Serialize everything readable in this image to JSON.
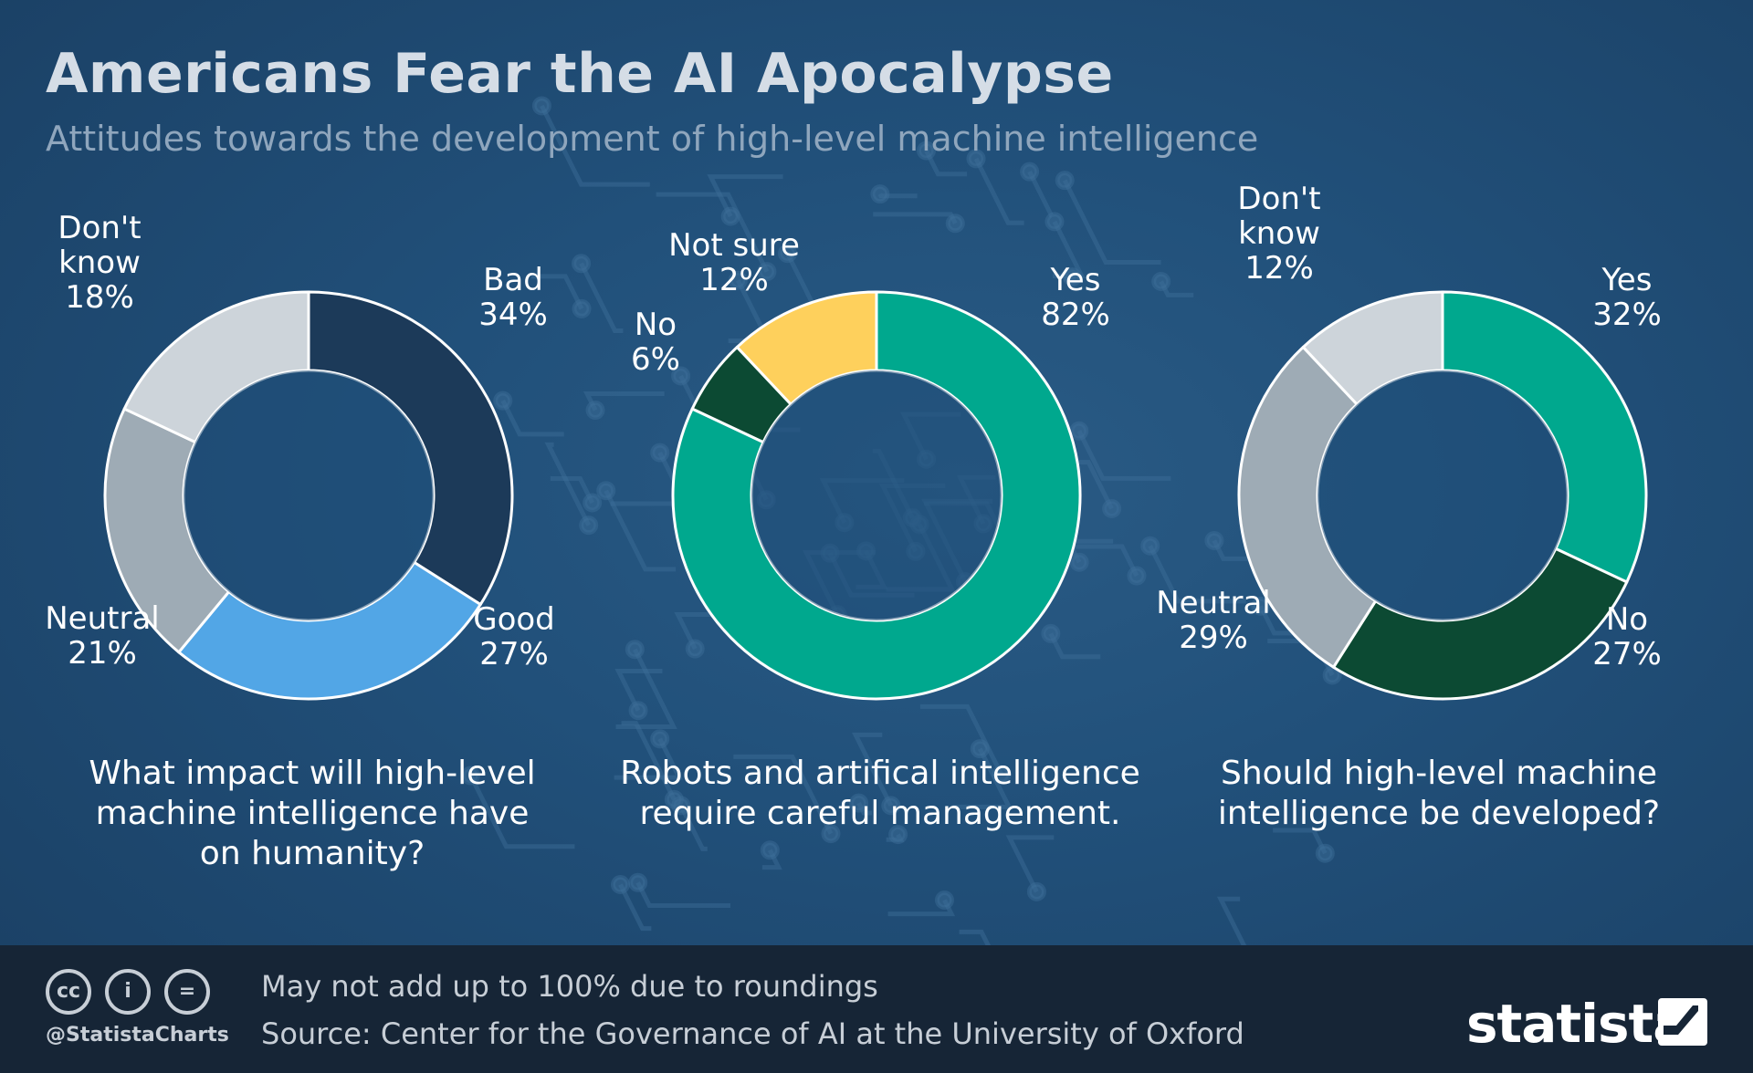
{
  "title": "Americans Fear the AI Apocalypse",
  "subtitle": "Attitudes towards the development of high-level machine intelligence",
  "chart_data": [
    {
      "type": "pie",
      "variant": "donut",
      "question": [
        "What impact will high-level",
        "machine intelligence have",
        "on humanity?"
      ],
      "slices": [
        {
          "label": [
            "Bad"
          ],
          "value": 34,
          "display": "34%",
          "color": "#1c3a59"
        },
        {
          "label": [
            "Good"
          ],
          "value": 27,
          "display": "27%",
          "color": "#52a6e6"
        },
        {
          "label": [
            "Neutral"
          ],
          "value": 21,
          "display": "21%",
          "color": "#9eabb5"
        },
        {
          "label": [
            "Don't",
            "know"
          ],
          "value": 18,
          "display": "18%",
          "color": "#cdd4da"
        }
      ]
    },
    {
      "type": "pie",
      "variant": "donut",
      "question": [
        "Robots and artifical intelligence",
        "require careful management."
      ],
      "slices": [
        {
          "label": [
            "Yes"
          ],
          "value": 82,
          "display": "82%",
          "color": "#00a88e"
        },
        {
          "label": [
            "No"
          ],
          "value": 6,
          "display": "6%",
          "color": "#0c4a33"
        },
        {
          "label": [
            "Not sure"
          ],
          "value": 12,
          "display": "12%",
          "color": "#fed05c"
        }
      ]
    },
    {
      "type": "pie",
      "variant": "donut",
      "question": [
        "Should high-level machine",
        "intelligence be developed?"
      ],
      "slices": [
        {
          "label": [
            "Yes"
          ],
          "value": 32,
          "display": "32%",
          "color": "#00a88e"
        },
        {
          "label": [
            "No"
          ],
          "value": 27,
          "display": "27%",
          "color": "#0c4a33"
        },
        {
          "label": [
            "Neutral"
          ],
          "value": 29,
          "display": "29%",
          "color": "#9eabb5"
        },
        {
          "label": [
            "Don't",
            "know"
          ],
          "value": 12,
          "display": "12%",
          "color": "#cdd4da"
        }
      ]
    }
  ],
  "footer": {
    "icons": [
      {
        "name": "cc-icon",
        "glyph": "cc"
      },
      {
        "name": "person-icon",
        "glyph": "i"
      },
      {
        "name": "equals-icon",
        "glyph": "="
      }
    ],
    "handle": "@StatistaCharts",
    "note": "May not add up to 100% due to roundings",
    "source": "Source: Center for the Governance of AI at the University of Oxford",
    "brand": "statista",
    "brand_icon": "statista-logo-icon"
  }
}
